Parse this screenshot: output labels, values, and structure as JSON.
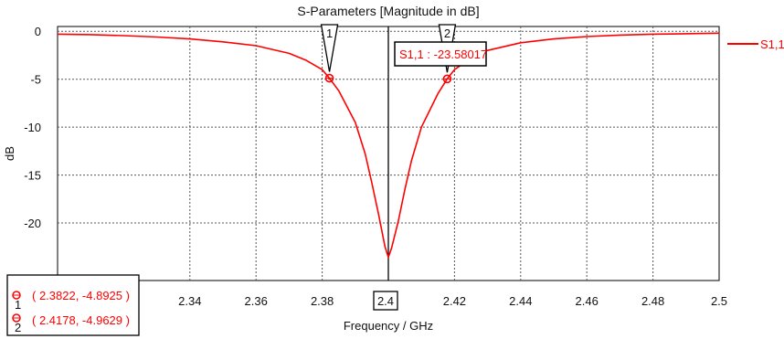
{
  "chart_data": {
    "type": "line",
    "title": "S-Parameters [Magnitude in dB]",
    "xlabel": "Frequency / GHz",
    "ylabel": "dB",
    "xlim": [
      2.3,
      2.5
    ],
    "ylim": [
      -26,
      0.5
    ],
    "x_ticks": [
      2.34,
      2.36,
      2.38,
      2.4,
      2.42,
      2.44,
      2.46,
      2.48,
      2.5
    ],
    "y_ticks": [
      0,
      -5,
      -10,
      -15,
      -20
    ],
    "grid": true,
    "legend_position": "right",
    "series": [
      {
        "name": "S1,1",
        "color": "#ff0000",
        "x": [
          2.3,
          2.31,
          2.32,
          2.33,
          2.34,
          2.35,
          2.36,
          2.37,
          2.375,
          2.38,
          2.3822,
          2.385,
          2.39,
          2.393,
          2.395,
          2.397,
          2.399,
          2.4,
          2.401,
          2.403,
          2.405,
          2.407,
          2.41,
          2.415,
          2.4178,
          2.42,
          2.425,
          2.43,
          2.44,
          2.45,
          2.46,
          2.47,
          2.48,
          2.49,
          2.5
        ],
        "y": [
          -0.3,
          -0.35,
          -0.45,
          -0.6,
          -0.8,
          -1.1,
          -1.5,
          -2.3,
          -3.0,
          -4.0,
          -4.8925,
          -6.2,
          -9.5,
          -12.8,
          -15.8,
          -19.0,
          -22.5,
          -23.58,
          -22.6,
          -19.8,
          -16.5,
          -13.5,
          -10.0,
          -6.5,
          -4.9629,
          -4.0,
          -2.8,
          -2.0,
          -1.2,
          -0.8,
          -0.55,
          -0.4,
          -0.3,
          -0.25,
          -0.2
        ]
      }
    ],
    "markers": [
      {
        "label": "1",
        "x": 2.3822,
        "y": -4.8925,
        "text": "( 2.3822, -4.8925 )"
      },
      {
        "label": "2",
        "x": 2.4178,
        "y": -4.9629,
        "text": "( 2.4178, -4.9629 )"
      }
    ],
    "cursor": {
      "x": 2.4,
      "x_label": "2.4",
      "readout": "S1,1 : -23.58017"
    }
  }
}
